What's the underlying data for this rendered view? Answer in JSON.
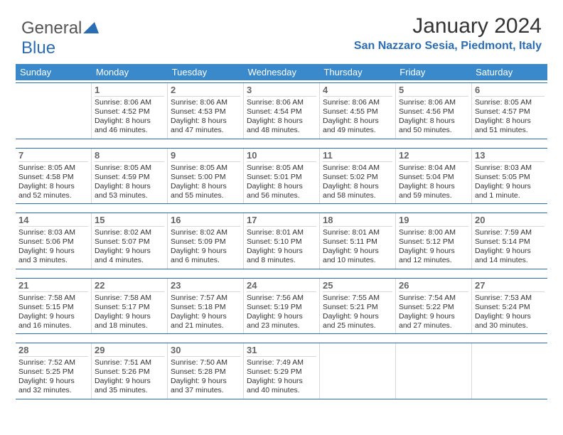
{
  "header": {
    "logo_general": "General",
    "logo_blue": "Blue",
    "month_title": "January 2024",
    "location": "San Nazzaro Sesia, Piedmont, Italy"
  },
  "colors": {
    "header_bg": "#3a8acb",
    "accent": "#2a6db5",
    "text": "#333333",
    "muted": "#666666",
    "cell_border": "#d8d8d8",
    "bg": "#ffffff"
  },
  "day_names": [
    "Sunday",
    "Monday",
    "Tuesday",
    "Wednesday",
    "Thursday",
    "Friday",
    "Saturday"
  ],
  "weeks": [
    [
      {
        "n": "",
        "sr": "",
        "ss": "",
        "d1": "",
        "d2": "",
        "empty": true
      },
      {
        "n": "1",
        "sr": "Sunrise: 8:06 AM",
        "ss": "Sunset: 4:52 PM",
        "d1": "Daylight: 8 hours",
        "d2": "and 46 minutes."
      },
      {
        "n": "2",
        "sr": "Sunrise: 8:06 AM",
        "ss": "Sunset: 4:53 PM",
        "d1": "Daylight: 8 hours",
        "d2": "and 47 minutes."
      },
      {
        "n": "3",
        "sr": "Sunrise: 8:06 AM",
        "ss": "Sunset: 4:54 PM",
        "d1": "Daylight: 8 hours",
        "d2": "and 48 minutes."
      },
      {
        "n": "4",
        "sr": "Sunrise: 8:06 AM",
        "ss": "Sunset: 4:55 PM",
        "d1": "Daylight: 8 hours",
        "d2": "and 49 minutes."
      },
      {
        "n": "5",
        "sr": "Sunrise: 8:06 AM",
        "ss": "Sunset: 4:56 PM",
        "d1": "Daylight: 8 hours",
        "d2": "and 50 minutes."
      },
      {
        "n": "6",
        "sr": "Sunrise: 8:05 AM",
        "ss": "Sunset: 4:57 PM",
        "d1": "Daylight: 8 hours",
        "d2": "and 51 minutes."
      }
    ],
    [
      {
        "n": "7",
        "sr": "Sunrise: 8:05 AM",
        "ss": "Sunset: 4:58 PM",
        "d1": "Daylight: 8 hours",
        "d2": "and 52 minutes."
      },
      {
        "n": "8",
        "sr": "Sunrise: 8:05 AM",
        "ss": "Sunset: 4:59 PM",
        "d1": "Daylight: 8 hours",
        "d2": "and 53 minutes."
      },
      {
        "n": "9",
        "sr": "Sunrise: 8:05 AM",
        "ss": "Sunset: 5:00 PM",
        "d1": "Daylight: 8 hours",
        "d2": "and 55 minutes."
      },
      {
        "n": "10",
        "sr": "Sunrise: 8:05 AM",
        "ss": "Sunset: 5:01 PM",
        "d1": "Daylight: 8 hours",
        "d2": "and 56 minutes."
      },
      {
        "n": "11",
        "sr": "Sunrise: 8:04 AM",
        "ss": "Sunset: 5:02 PM",
        "d1": "Daylight: 8 hours",
        "d2": "and 58 minutes."
      },
      {
        "n": "12",
        "sr": "Sunrise: 8:04 AM",
        "ss": "Sunset: 5:04 PM",
        "d1": "Daylight: 8 hours",
        "d2": "and 59 minutes."
      },
      {
        "n": "13",
        "sr": "Sunrise: 8:03 AM",
        "ss": "Sunset: 5:05 PM",
        "d1": "Daylight: 9 hours",
        "d2": "and 1 minute."
      }
    ],
    [
      {
        "n": "14",
        "sr": "Sunrise: 8:03 AM",
        "ss": "Sunset: 5:06 PM",
        "d1": "Daylight: 9 hours",
        "d2": "and 3 minutes."
      },
      {
        "n": "15",
        "sr": "Sunrise: 8:02 AM",
        "ss": "Sunset: 5:07 PM",
        "d1": "Daylight: 9 hours",
        "d2": "and 4 minutes."
      },
      {
        "n": "16",
        "sr": "Sunrise: 8:02 AM",
        "ss": "Sunset: 5:09 PM",
        "d1": "Daylight: 9 hours",
        "d2": "and 6 minutes."
      },
      {
        "n": "17",
        "sr": "Sunrise: 8:01 AM",
        "ss": "Sunset: 5:10 PM",
        "d1": "Daylight: 9 hours",
        "d2": "and 8 minutes."
      },
      {
        "n": "18",
        "sr": "Sunrise: 8:01 AM",
        "ss": "Sunset: 5:11 PM",
        "d1": "Daylight: 9 hours",
        "d2": "and 10 minutes."
      },
      {
        "n": "19",
        "sr": "Sunrise: 8:00 AM",
        "ss": "Sunset: 5:12 PM",
        "d1": "Daylight: 9 hours",
        "d2": "and 12 minutes."
      },
      {
        "n": "20",
        "sr": "Sunrise: 7:59 AM",
        "ss": "Sunset: 5:14 PM",
        "d1": "Daylight: 9 hours",
        "d2": "and 14 minutes."
      }
    ],
    [
      {
        "n": "21",
        "sr": "Sunrise: 7:58 AM",
        "ss": "Sunset: 5:15 PM",
        "d1": "Daylight: 9 hours",
        "d2": "and 16 minutes."
      },
      {
        "n": "22",
        "sr": "Sunrise: 7:58 AM",
        "ss": "Sunset: 5:17 PM",
        "d1": "Daylight: 9 hours",
        "d2": "and 18 minutes."
      },
      {
        "n": "23",
        "sr": "Sunrise: 7:57 AM",
        "ss": "Sunset: 5:18 PM",
        "d1": "Daylight: 9 hours",
        "d2": "and 21 minutes."
      },
      {
        "n": "24",
        "sr": "Sunrise: 7:56 AM",
        "ss": "Sunset: 5:19 PM",
        "d1": "Daylight: 9 hours",
        "d2": "and 23 minutes."
      },
      {
        "n": "25",
        "sr": "Sunrise: 7:55 AM",
        "ss": "Sunset: 5:21 PM",
        "d1": "Daylight: 9 hours",
        "d2": "and 25 minutes."
      },
      {
        "n": "26",
        "sr": "Sunrise: 7:54 AM",
        "ss": "Sunset: 5:22 PM",
        "d1": "Daylight: 9 hours",
        "d2": "and 27 minutes."
      },
      {
        "n": "27",
        "sr": "Sunrise: 7:53 AM",
        "ss": "Sunset: 5:24 PM",
        "d1": "Daylight: 9 hours",
        "d2": "and 30 minutes."
      }
    ],
    [
      {
        "n": "28",
        "sr": "Sunrise: 7:52 AM",
        "ss": "Sunset: 5:25 PM",
        "d1": "Daylight: 9 hours",
        "d2": "and 32 minutes."
      },
      {
        "n": "29",
        "sr": "Sunrise: 7:51 AM",
        "ss": "Sunset: 5:26 PM",
        "d1": "Daylight: 9 hours",
        "d2": "and 35 minutes."
      },
      {
        "n": "30",
        "sr": "Sunrise: 7:50 AM",
        "ss": "Sunset: 5:28 PM",
        "d1": "Daylight: 9 hours",
        "d2": "and 37 minutes."
      },
      {
        "n": "31",
        "sr": "Sunrise: 7:49 AM",
        "ss": "Sunset: 5:29 PM",
        "d1": "Daylight: 9 hours",
        "d2": "and 40 minutes."
      },
      {
        "n": "",
        "sr": "",
        "ss": "",
        "d1": "",
        "d2": "",
        "empty": true
      },
      {
        "n": "",
        "sr": "",
        "ss": "",
        "d1": "",
        "d2": "",
        "empty": true
      },
      {
        "n": "",
        "sr": "",
        "ss": "",
        "d1": "",
        "d2": "",
        "empty": true
      }
    ]
  ]
}
